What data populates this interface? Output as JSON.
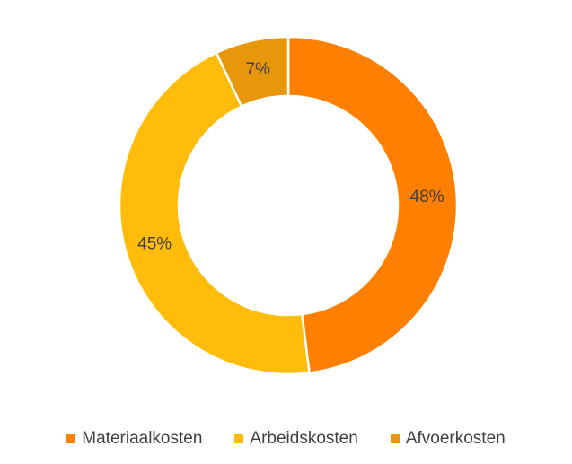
{
  "chart_data": {
    "type": "pie",
    "variant": "donut",
    "categories": [
      "Materiaalkosten",
      "Arbeidskosten",
      "Afvoerkosten"
    ],
    "values": [
      48,
      45,
      7
    ],
    "labels": [
      "48%",
      "45%",
      "7%"
    ],
    "colors": [
      "#FF8000",
      "#FFBC0B",
      "#E8960A"
    ],
    "legend_position": "bottom",
    "title": ""
  }
}
